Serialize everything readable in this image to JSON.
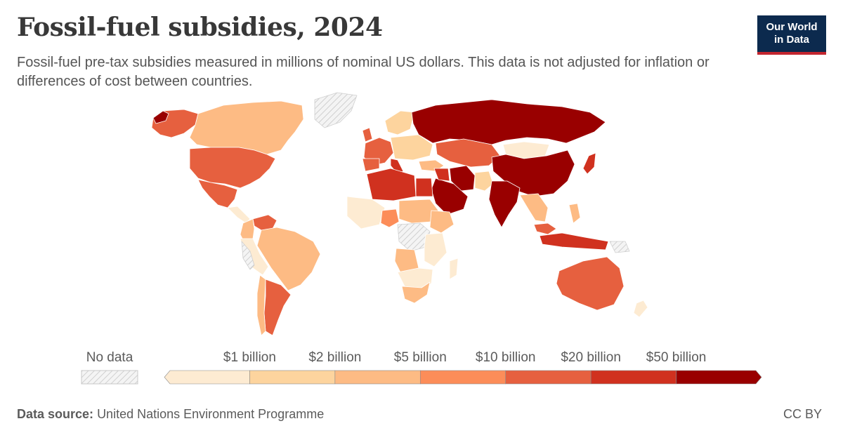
{
  "header": {
    "title": "Fossil-fuel subsidies, 2024",
    "subtitle": "Fossil-fuel pre-tax subsidies measured in millions of nominal US dollars. This data is not adjusted for inflation or differences of cost between countries."
  },
  "logo": {
    "line1": "Our World",
    "line2": "in Data"
  },
  "legend": {
    "no_data_label": "No data",
    "thresholds": [
      "$1 billion",
      "$2 billion",
      "$5 billion",
      "$10 billion",
      "$20 billion",
      "$50 billion"
    ],
    "colors": [
      "#fdebd2",
      "#fdd49e",
      "#fdbb84",
      "#fc8d59",
      "#e6603f",
      "#d0311f",
      "#990000"
    ],
    "no_data_color": "#e0e0e0"
  },
  "footer": {
    "source_label": "Data source:",
    "source_text": "United Nations Environment Programme",
    "license": "CC BY"
  }
}
